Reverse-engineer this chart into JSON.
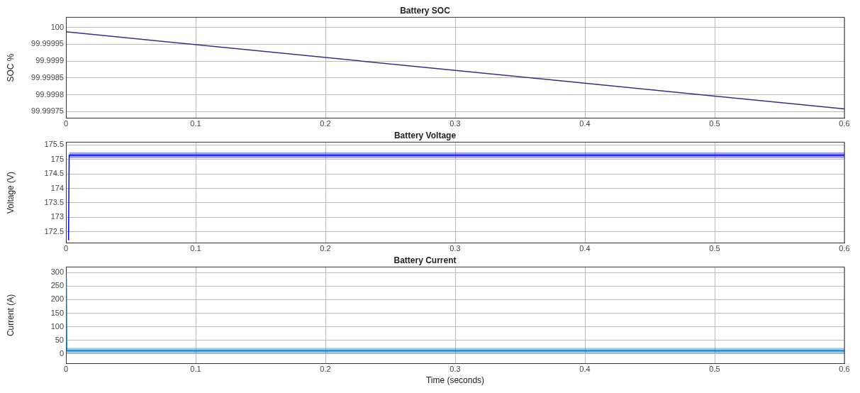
{
  "chart_data": [
    {
      "type": "line",
      "title": "Battery SOC",
      "ylabel": "SOC %",
      "x": [
        0,
        0.6
      ],
      "xlim": [
        0,
        0.6
      ],
      "xticks": [
        0,
        0.1,
        0.2,
        0.3,
        0.4,
        0.5,
        0.6
      ],
      "ylim": [
        99.99973,
        100.00003
      ],
      "yticks": [
        99.99975,
        99.9998,
        99.99985,
        99.9999,
        99.99995,
        100
      ],
      "grid": true,
      "series": [
        {
          "color": "#30308a",
          "values": [
            99.999987,
            99.999758
          ]
        }
      ]
    },
    {
      "type": "line",
      "title": "Battery Voltage",
      "ylabel": "Voltage (V)",
      "x": [
        0.002,
        0.0025,
        0.6
      ],
      "xlim": [
        0,
        0.6
      ],
      "xticks": [
        0,
        0.1,
        0.2,
        0.3,
        0.4,
        0.5,
        0.6
      ],
      "ylim": [
        172.1,
        175.6
      ],
      "yticks": [
        172.5,
        173,
        173.5,
        174,
        174.5,
        175,
        175.5
      ],
      "grid": true,
      "series": [
        {
          "color": "#0000ff",
          "values": [
            172.2,
            175.15,
            175.15
          ],
          "lower": [
            172.2,
            175.05,
            175.05
          ],
          "upper": [
            172.2,
            175.25,
            175.25
          ]
        }
      ]
    },
    {
      "type": "line",
      "title": "Battery Current",
      "xlabel": "Time (seconds)",
      "ylabel": "Current (A)",
      "x": [
        0,
        0.0003,
        0.0006,
        0.6
      ],
      "xlim": [
        0,
        0.6
      ],
      "xticks": [
        0,
        0.1,
        0.2,
        0.3,
        0.4,
        0.5,
        0.6
      ],
      "ylim": [
        -35,
        320
      ],
      "yticks": [
        0,
        50,
        100,
        150,
        200,
        250,
        300
      ],
      "grid": true,
      "series": [
        {
          "color": "#0072bd",
          "values": [
            12,
            280,
            12,
            12
          ],
          "lower": [
            12,
            280,
            2,
            2
          ],
          "upper": [
            12,
            280,
            22,
            22
          ]
        }
      ]
    }
  ]
}
